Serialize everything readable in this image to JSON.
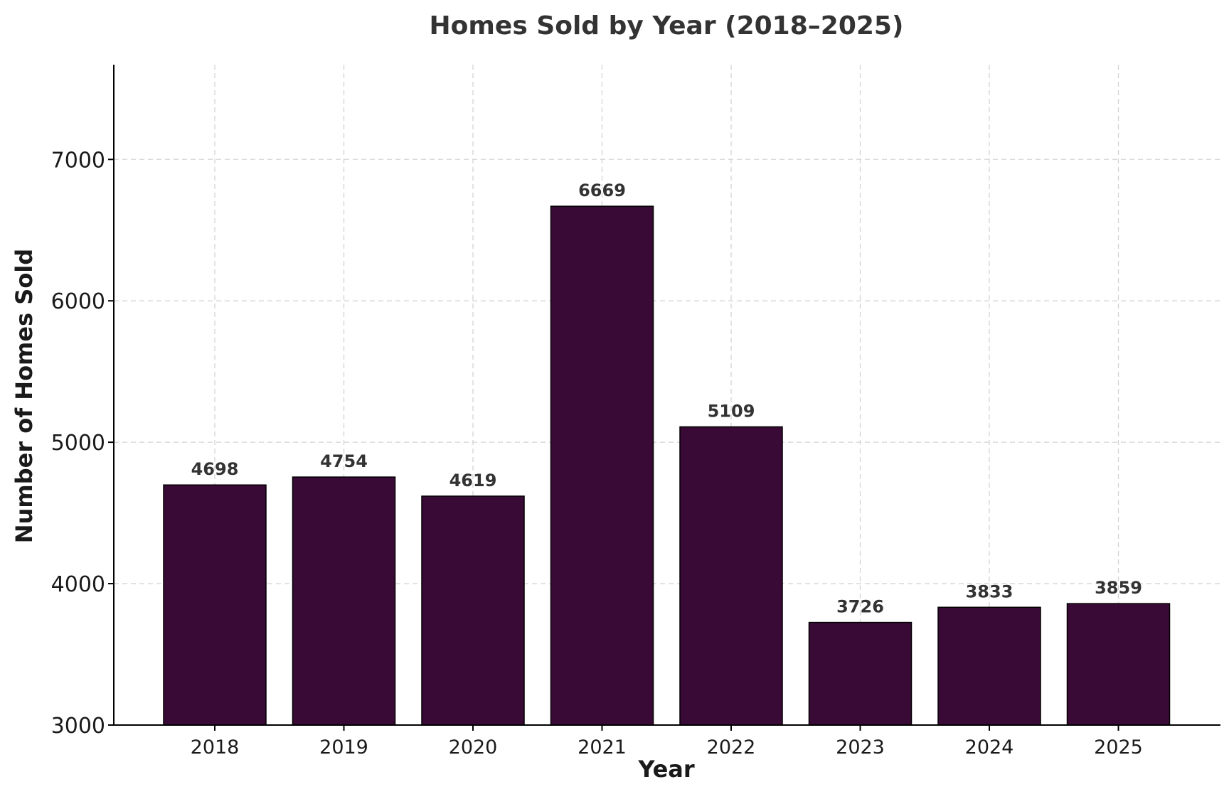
{
  "chart_data": {
    "type": "bar",
    "title": "Homes Sold by Year (2018–2025)",
    "xlabel": "Year",
    "ylabel": "Number of Homes Sold",
    "categories": [
      "2018",
      "2019",
      "2020",
      "2021",
      "2022",
      "2023",
      "2024",
      "2025"
    ],
    "values": [
      4698,
      4754,
      4619,
      6669,
      5109,
      3726,
      3833,
      3859
    ],
    "data_labels": [
      "4698",
      "4754",
      "4619",
      "6669",
      "5109",
      "3726",
      "3833",
      "3859"
    ],
    "ylim": [
      3000,
      7670
    ],
    "yticks": [
      3000,
      4000,
      5000,
      6000,
      7000
    ],
    "ytick_labels": [
      "3000",
      "4000",
      "5000",
      "6000",
      "7000"
    ],
    "grid": true,
    "bar_color": "#3a0a36"
  }
}
